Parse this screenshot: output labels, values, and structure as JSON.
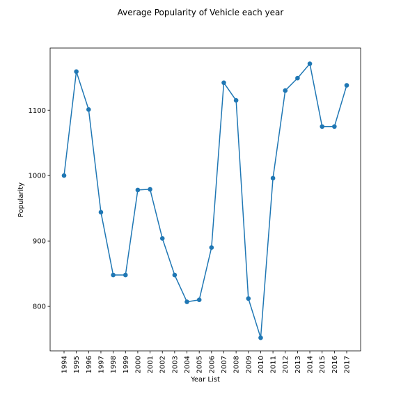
{
  "chart_data": {
    "type": "line",
    "title": "Average Popularity of Vehicle each year",
    "xlabel": "Year List",
    "ylabel": "Popularity",
    "x": [
      "1994",
      "1995",
      "1996",
      "1997",
      "1998",
      "1999",
      "2000",
      "2001",
      "2002",
      "2003",
      "2004",
      "2005",
      "2006",
      "2007",
      "2008",
      "2009",
      "2010",
      "2011",
      "2012",
      "2013",
      "2014",
      "2015",
      "2016",
      "2017"
    ],
    "series": [
      {
        "values": [
          1000,
          1159,
          1101,
          944,
          848,
          848,
          978,
          979,
          904,
          848,
          807,
          810,
          890,
          1142,
          1115,
          812,
          752,
          996,
          1130,
          1149,
          1171,
          1075,
          1075,
          1138
        ],
        "color": "#1f77b4",
        "marker": "circle"
      }
    ],
    "ylim": [
      732,
      1195
    ],
    "yticks": [
      "800",
      "900",
      "1000",
      "1100"
    ],
    "grid": false,
    "legend": "none"
  }
}
